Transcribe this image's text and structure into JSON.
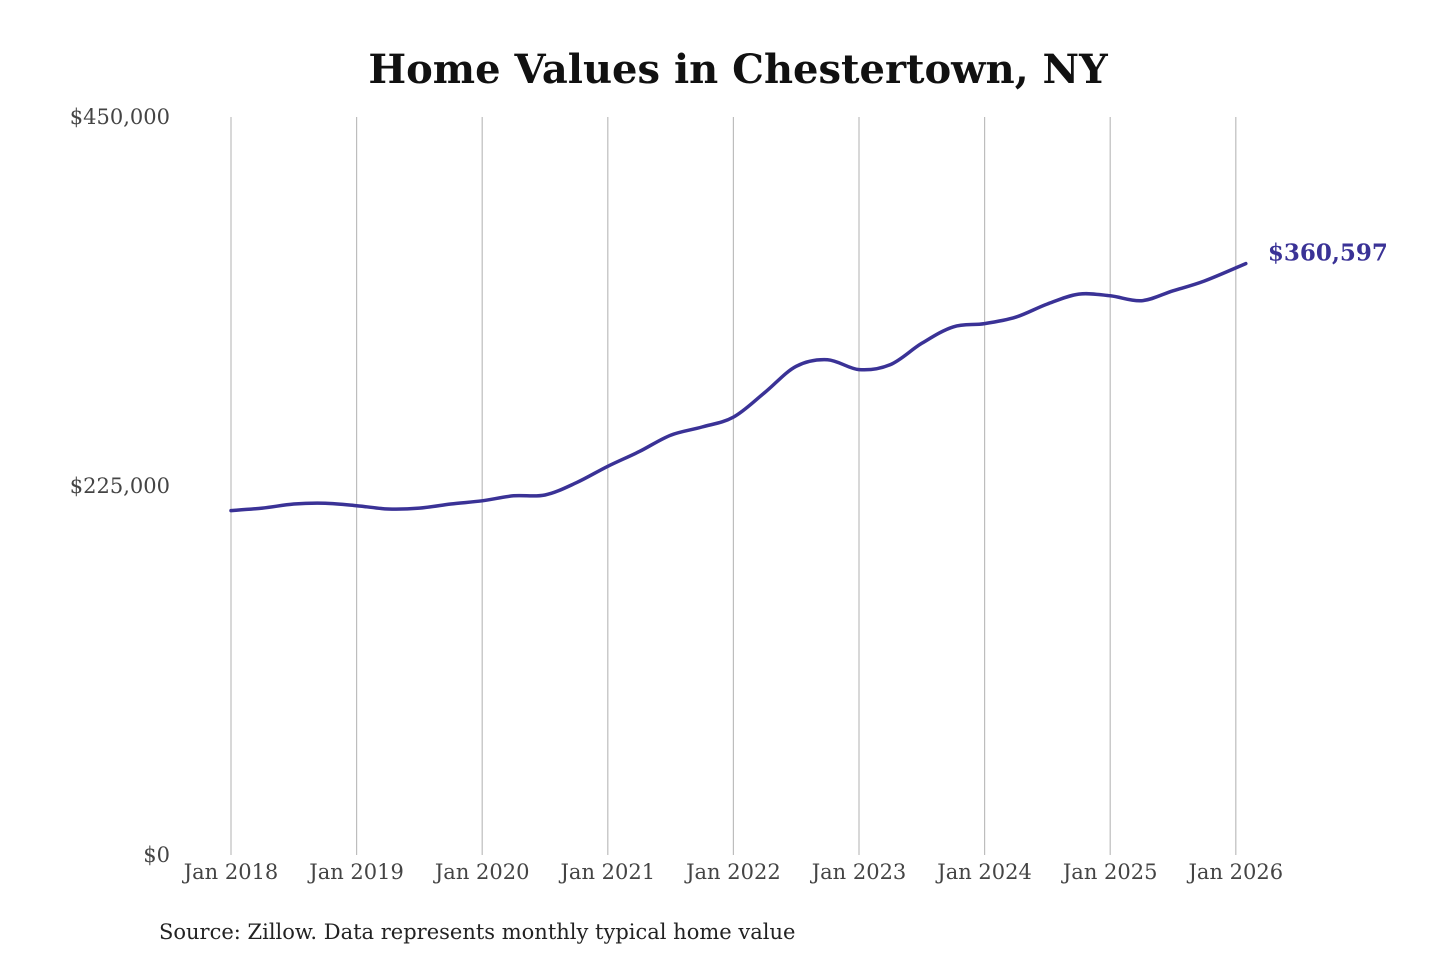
{
  "chart_data": {
    "type": "line",
    "title": "Home Values in Chestertown, NY",
    "xlabel": "",
    "ylabel": "",
    "ylim": [
      0,
      450000
    ],
    "yticks": [
      {
        "value": 0,
        "label": "$0"
      },
      {
        "value": 225000,
        "label": "$225,000"
      },
      {
        "value": 450000,
        "label": "$450,000"
      }
    ],
    "xlim": [
      2018.0,
      2026.0
    ],
    "xticks": [
      {
        "value": 2018,
        "label": "Jan 2018"
      },
      {
        "value": 2019,
        "label": "Jan 2019"
      },
      {
        "value": 2020,
        "label": "Jan 2020"
      },
      {
        "value": 2021,
        "label": "Jan 2021"
      },
      {
        "value": 2022,
        "label": "Jan 2022"
      },
      {
        "value": 2023,
        "label": "Jan 2023"
      },
      {
        "value": 2024,
        "label": "Jan 2024"
      },
      {
        "value": 2025,
        "label": "Jan 2025"
      },
      {
        "value": 2026,
        "label": "Jan 2026"
      }
    ],
    "grid": "vertical",
    "series": [
      {
        "color": "#3a3296",
        "end_label": "$360,597",
        "points": [
          {
            "x": 2018.0,
            "y": 210000
          },
          {
            "x": 2018.25,
            "y": 211500
          },
          {
            "x": 2018.5,
            "y": 214000
          },
          {
            "x": 2018.75,
            "y": 214500
          },
          {
            "x": 2019.0,
            "y": 213000
          },
          {
            "x": 2019.25,
            "y": 211000
          },
          {
            "x": 2019.5,
            "y": 211500
          },
          {
            "x": 2019.75,
            "y": 214000
          },
          {
            "x": 2020.0,
            "y": 216000
          },
          {
            "x": 2020.25,
            "y": 219000
          },
          {
            "x": 2020.5,
            "y": 219500
          },
          {
            "x": 2020.75,
            "y": 227000
          },
          {
            "x": 2021.0,
            "y": 237000
          },
          {
            "x": 2021.25,
            "y": 246000
          },
          {
            "x": 2021.5,
            "y": 256000
          },
          {
            "x": 2021.75,
            "y": 261000
          },
          {
            "x": 2022.0,
            "y": 267000
          },
          {
            "x": 2022.25,
            "y": 282000
          },
          {
            "x": 2022.5,
            "y": 298000
          },
          {
            "x": 2022.75,
            "y": 302000
          },
          {
            "x": 2023.0,
            "y": 296000
          },
          {
            "x": 2023.25,
            "y": 299000
          },
          {
            "x": 2023.5,
            "y": 312000
          },
          {
            "x": 2023.75,
            "y": 322000
          },
          {
            "x": 2024.0,
            "y": 324000
          },
          {
            "x": 2024.25,
            "y": 328000
          },
          {
            "x": 2024.5,
            "y": 336000
          },
          {
            "x": 2024.75,
            "y": 342000
          },
          {
            "x": 2025.0,
            "y": 341000
          },
          {
            "x": 2025.25,
            "y": 338000
          },
          {
            "x": 2025.5,
            "y": 344000
          },
          {
            "x": 2025.75,
            "y": 350000
          },
          {
            "x": 2026.08,
            "y": 360597
          }
        ]
      }
    ],
    "source": "Source: Zillow. Data represents monthly typical home value"
  }
}
